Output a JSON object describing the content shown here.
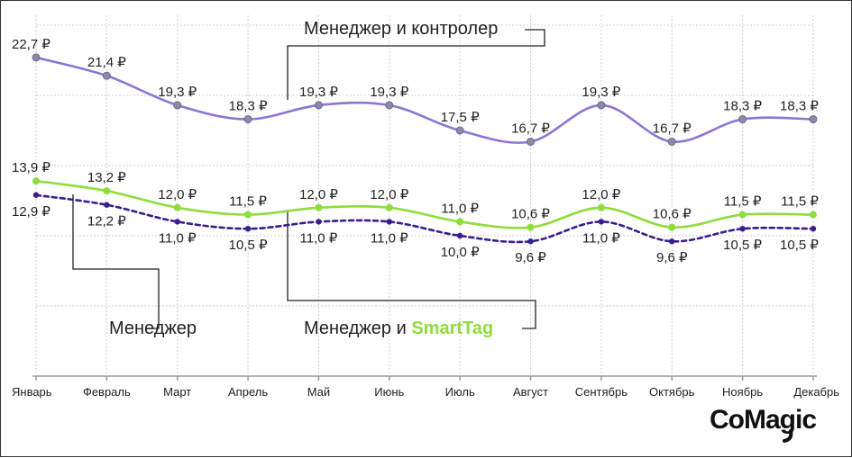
{
  "chart_data": {
    "type": "line",
    "categories": [
      "Январь",
      "Февраль",
      "Март",
      "Апрель",
      "Май",
      "Июнь",
      "Июль",
      "Август",
      "Сентябрь",
      "Октябрь",
      "Ноябрь",
      "Декабрь"
    ],
    "unit": "₽",
    "ylim": [
      0,
      25
    ],
    "grid": true,
    "series": [
      {
        "name": "Менеджер и контролер",
        "values": [
          22.7,
          21.4,
          19.3,
          18.3,
          19.3,
          19.3,
          17.5,
          16.7,
          19.3,
          16.7,
          18.3,
          18.3
        ],
        "labels": [
          "22,7 ₽",
          "21,4 ₽",
          "19,3 ₽",
          "18,3 ₽",
          "19,3 ₽",
          "19,3 ₽",
          "17,5 ₽",
          "16,7 ₽",
          "19,3 ₽",
          "16,7 ₽",
          "18,3 ₽",
          "18,3 ₽"
        ],
        "color": "#8f74d6",
        "style": "solid"
      },
      {
        "name": "Менеджер и SmartTag",
        "values": [
          13.9,
          13.2,
          12.0,
          11.5,
          12.0,
          12.0,
          11.0,
          10.6,
          12.0,
          10.6,
          11.5,
          11.5
        ],
        "labels": [
          "13,9 ₽",
          "13,2 ₽",
          "12,0 ₽",
          "11,5 ₽",
          "12,0 ₽",
          "12,0 ₽",
          "11,0 ₽",
          "10,6 ₽",
          "12,0 ₽",
          "10,6 ₽",
          "11,5 ₽",
          "11,5 ₽"
        ],
        "color": "#8fdc3c",
        "style": "solid"
      },
      {
        "name": "Менеджер",
        "values": [
          12.9,
          12.2,
          11.0,
          10.5,
          11.0,
          11.0,
          10.0,
          9.6,
          11.0,
          9.6,
          10.5,
          10.5
        ],
        "labels": [
          "12,9 ₽",
          "12,2 ₽",
          "11,0 ₽",
          "10,5 ₽",
          "11,0 ₽",
          "11,0 ₽",
          "10,0 ₽",
          "9,6 ₽",
          "11,0 ₽",
          "9,6 ₽",
          "10,5 ₽",
          "10,5 ₽"
        ],
        "color": "#3a1f8c",
        "style": "dashed"
      }
    ],
    "callouts": {
      "top": "Менеджер и контролер",
      "left": "Менеджер",
      "right_prefix": "Менеджер и ",
      "right_brand": "SmartTag"
    }
  },
  "brand": {
    "logo_text": "CoMagic"
  }
}
